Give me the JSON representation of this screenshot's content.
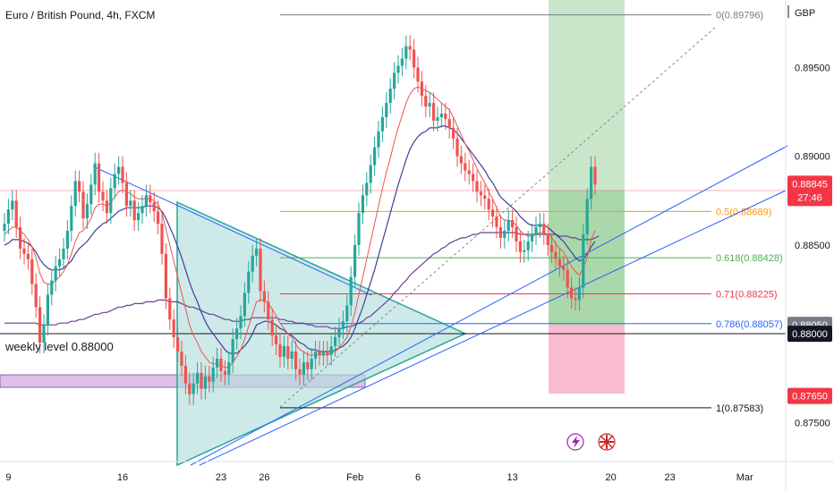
{
  "title": "Euro / British Pound, 4h, FXCM",
  "currency": "GBP",
  "colors": {
    "up": "#26a69a",
    "down": "#ef5350",
    "ema_fast": "#ef5350",
    "ema_slow": "#3f3f9a",
    "ema_long": "#6b3f8f",
    "wedge_fill": "#b2dfdb",
    "wedge_line": "#26a69a",
    "trendline": "#2962ff",
    "target_zone": "#a5d6a7",
    "stop_zone": "#f8bbd0",
    "purple_zone": "#e1bee7",
    "badge_red": "#f23645",
    "badge_black": "#131722",
    "badge_gray": "#787b86"
  },
  "chart_data": {
    "type": "candlestick",
    "title": "Euro / British Pound, 4h, FXCM",
    "ylim": [
      0.8728,
      0.8988
    ],
    "y_ticks": [
      {
        "value": 0.895,
        "label": "0.89500"
      },
      {
        "value": 0.89,
        "label": "0.89000"
      },
      {
        "value": 0.885,
        "label": "0.88500"
      },
      {
        "value": 0.875,
        "label": "0.87500"
      }
    ],
    "x_ticks": [
      {
        "bar": 1,
        "label": "9"
      },
      {
        "bar": 30,
        "label": "16"
      },
      {
        "bar": 55,
        "label": "23"
      },
      {
        "bar": 66,
        "label": "26"
      },
      {
        "bar": 89,
        "label": "Feb"
      },
      {
        "bar": 105,
        "label": "6"
      },
      {
        "bar": 129,
        "label": "13"
      },
      {
        "bar": 154,
        "label": "20"
      },
      {
        "bar": 169,
        "label": "23"
      },
      {
        "bar": 188,
        "label": "Mar"
      }
    ],
    "closes": [
      0.8862,
      0.887,
      0.8875,
      0.886,
      0.8848,
      0.8845,
      0.8842,
      0.8828,
      0.8815,
      0.8795,
      0.8805,
      0.8822,
      0.883,
      0.8838,
      0.8842,
      0.8848,
      0.8858,
      0.8872,
      0.8886,
      0.888,
      0.8865,
      0.8873,
      0.8884,
      0.8896,
      0.888,
      0.8875,
      0.8868,
      0.8882,
      0.889,
      0.8894,
      0.8885,
      0.8872,
      0.8875,
      0.8864,
      0.8868,
      0.8872,
      0.8878,
      0.8874,
      0.8869,
      0.8862,
      0.8845,
      0.882,
      0.8808,
      0.8798,
      0.879,
      0.8782,
      0.8772,
      0.8766,
      0.8772,
      0.8778,
      0.8769,
      0.8776,
      0.8773,
      0.8781,
      0.8786,
      0.8779,
      0.8777,
      0.8784,
      0.8797,
      0.8803,
      0.881,
      0.8823,
      0.8835,
      0.8844,
      0.8848,
      0.8824,
      0.8818,
      0.8808,
      0.8799,
      0.8794,
      0.8787,
      0.8793,
      0.8786,
      0.879,
      0.878,
      0.8777,
      0.8784,
      0.878,
      0.8786,
      0.879,
      0.8788,
      0.879,
      0.8788,
      0.8793,
      0.8798,
      0.8803,
      0.8807,
      0.8816,
      0.8832,
      0.885,
      0.8868,
      0.8878,
      0.8885,
      0.8895,
      0.8905,
      0.8914,
      0.8922,
      0.893,
      0.8938,
      0.8947,
      0.8951,
      0.8955,
      0.8962,
      0.896,
      0.895,
      0.8942,
      0.8934,
      0.8928,
      0.893,
      0.892,
      0.8922,
      0.8924,
      0.8921,
      0.8916,
      0.891,
      0.89,
      0.8896,
      0.8892,
      0.889,
      0.8886,
      0.888,
      0.8878,
      0.8876,
      0.887,
      0.8866,
      0.886,
      0.8854,
      0.8858,
      0.8864,
      0.886,
      0.8852,
      0.8846,
      0.8847,
      0.8852,
      0.8856,
      0.886,
      0.8862,
      0.8856,
      0.885,
      0.8846,
      0.8842,
      0.8838,
      0.8836,
      0.8826,
      0.882,
      0.8819,
      0.8826,
      0.8856,
      0.8876,
      0.8894,
      0.8884
    ],
    "ema_fast": [
      0.8856,
      0.8858,
      0.886,
      0.886,
      0.8858,
      0.8856,
      0.8853,
      0.8849,
      0.8843,
      0.8834,
      0.8829,
      0.8828,
      0.8828,
      0.883,
      0.8832,
      0.8835,
      0.8839,
      0.8845,
      0.8852,
      0.8857,
      0.8858,
      0.8861,
      0.8865,
      0.8871,
      0.8873,
      0.8873,
      0.8872,
      0.8874,
      0.8877,
      0.888,
      0.8881,
      0.888,
      0.8879,
      0.8877,
      0.8876,
      0.8876,
      0.8876,
      0.8876,
      0.8875,
      0.8873,
      0.8868,
      0.8859,
      0.885,
      0.8841,
      0.8832,
      0.8823,
      0.8814,
      0.8805,
      0.8799,
      0.8795,
      0.879,
      0.8787,
      0.8784,
      0.8783,
      0.8783,
      0.8782,
      0.8781,
      0.8781,
      0.8784,
      0.8787,
      0.8791,
      0.8797,
      0.8804,
      0.8811,
      0.8818,
      0.8819,
      0.8819,
      0.8817,
      0.8814,
      0.881,
      0.8806,
      0.8803,
      0.88,
      0.8798,
      0.8794,
      0.8791,
      0.879,
      0.8788,
      0.8788,
      0.8788,
      0.8788,
      0.8788,
      0.8788,
      0.8789,
      0.879,
      0.8792,
      0.8795,
      0.8798,
      0.8804,
      0.8812,
      0.8822,
      0.8832,
      0.8842,
      0.8852,
      0.8862,
      0.8872,
      0.8882,
      0.8891,
      0.8899,
      0.8908,
      0.8916,
      0.8923,
      0.893,
      0.8935,
      0.8938,
      0.8939,
      0.8938,
      0.8937,
      0.8936,
      0.8934,
      0.8932,
      0.893,
      0.8928,
      0.8926,
      0.8922,
      0.8917,
      0.8912,
      0.8907,
      0.8903,
      0.8898,
      0.8893,
      0.8889,
      0.8885,
      0.888,
      0.8876,
      0.8871,
      0.8866,
      0.8864,
      0.8864,
      0.8863,
      0.8861,
      0.8858,
      0.8856,
      0.8855,
      0.8855,
      0.8856,
      0.8857,
      0.8857,
      0.8856,
      0.8854,
      0.8851,
      0.8848,
      0.8846,
      0.8842,
      0.8838,
      0.8835,
      0.8833,
      0.8837,
      0.8843,
      0.8853,
      0.8858
    ],
    "ema_slow": [
      0.885,
      0.8851,
      0.8853,
      0.8853,
      0.8853,
      0.8852,
      0.8851,
      0.8849,
      0.8846,
      0.8842,
      0.8839,
      0.8837,
      0.8836,
      0.8836,
      0.8836,
      0.8837,
      0.8839,
      0.8841,
      0.8845,
      0.8848,
      0.885,
      0.8852,
      0.8855,
      0.8858,
      0.886,
      0.8862,
      0.8863,
      0.8865,
      0.8867,
      0.8869,
      0.887,
      0.8871,
      0.8871,
      0.8871,
      0.8871,
      0.8871,
      0.8872,
      0.8872,
      0.8872,
      0.8871,
      0.8869,
      0.8865,
      0.886,
      0.8855,
      0.8849,
      0.8843,
      0.8836,
      0.8829,
      0.8823,
      0.8818,
      0.8812,
      0.8807,
      0.8803,
      0.88,
      0.8797,
      0.8794,
      0.8791,
      0.8789,
      0.8789,
      0.8789,
      0.8791,
      0.8793,
      0.8796,
      0.88,
      0.8805,
      0.8806,
      0.8807,
      0.8807,
      0.8806,
      0.8805,
      0.8803,
      0.8802,
      0.88,
      0.8799,
      0.8797,
      0.8795,
      0.8794,
      0.8792,
      0.8791,
      0.8791,
      0.879,
      0.879,
      0.879,
      0.879,
      0.8791,
      0.8792,
      0.8793,
      0.8795,
      0.8798,
      0.8803,
      0.8809,
      0.8815,
      0.8822,
      0.8829,
      0.8836,
      0.8844,
      0.8852,
      0.886,
      0.8868,
      0.8876,
      0.8884,
      0.8891,
      0.8898,
      0.8904,
      0.8908,
      0.8911,
      0.8913,
      0.8914,
      0.8916,
      0.8916,
      0.8916,
      0.8917,
      0.8917,
      0.8916,
      0.8915,
      0.8913,
      0.891,
      0.8907,
      0.8904,
      0.8901,
      0.8898,
      0.8895,
      0.8892,
      0.8888,
      0.8885,
      0.8881,
      0.8877,
      0.8875,
      0.8873,
      0.8871,
      0.8869,
      0.8866,
      0.8864,
      0.8862,
      0.8861,
      0.8861,
      0.8861,
      0.8861,
      0.886,
      0.8858,
      0.8856,
      0.8854,
      0.8852,
      0.8849,
      0.8846,
      0.8843,
      0.8841,
      0.8842,
      0.8845,
      0.8849,
      0.8852
    ],
    "ema_long": [
      0.8806,
      0.8806,
      0.8806,
      0.8806,
      0.8806,
      0.8806,
      0.8806,
      0.8806,
      0.8806,
      0.8805,
      0.8805,
      0.8805,
      0.8805,
      0.8805,
      0.8806,
      0.8806,
      0.8806,
      0.8807,
      0.8807,
      0.8808,
      0.8808,
      0.8809,
      0.881,
      0.8811,
      0.8811,
      0.8812,
      0.8812,
      0.8813,
      0.8814,
      0.8815,
      0.8815,
      0.8816,
      0.8816,
      0.8817,
      0.8817,
      0.8817,
      0.8818,
      0.8818,
      0.8818,
      0.8819,
      0.8819,
      0.8819,
      0.8818,
      0.8818,
      0.8818,
      0.8817,
      0.8816,
      0.8815,
      0.8815,
      0.8814,
      0.8813,
      0.8812,
      0.8811,
      0.8811,
      0.881,
      0.8809,
      0.8808,
      0.8808,
      0.8807,
      0.8807,
      0.8807,
      0.8808,
      0.8808,
      0.8809,
      0.8809,
      0.8809,
      0.8809,
      0.8809,
      0.8809,
      0.8809,
      0.8808,
      0.8808,
      0.8807,
      0.8807,
      0.8806,
      0.8806,
      0.8806,
      0.8805,
      0.8805,
      0.8804,
      0.8804,
      0.8804,
      0.8804,
      0.8803,
      0.8803,
      0.8803,
      0.8803,
      0.8804,
      0.8804,
      0.8805,
      0.8806,
      0.8807,
      0.8809,
      0.881,
      0.8812,
      0.8814,
      0.8816,
      0.8818,
      0.882,
      0.8823,
      0.8825,
      0.8828,
      0.883,
      0.8833,
      0.8835,
      0.8837,
      0.8839,
      0.8841,
      0.8843,
      0.8845,
      0.8846,
      0.8848,
      0.8849,
      0.8851,
      0.8852,
      0.8853,
      0.8854,
      0.8854,
      0.8855,
      0.8856,
      0.8856,
      0.8857,
      0.8857,
      0.8857,
      0.8857,
      0.8857,
      0.8857,
      0.8857,
      0.8857,
      0.8857,
      0.8857,
      0.8856,
      0.8856,
      0.8856,
      0.8856,
      0.8856,
      0.8856,
      0.8856,
      0.8856,
      0.8856,
      0.8856,
      0.8855,
      0.8855,
      0.8855,
      0.8854,
      0.8854,
      0.8853,
      0.8853,
      0.8853,
      0.8853,
      0.8854,
      0.8855
    ]
  },
  "fib_levels": [
    {
      "label": "0(0.89796)",
      "value": 0.89796,
      "color": "#787b86"
    },
    {
      "label": "0.5(0.88689)",
      "value": 0.88689,
      "color": "#ff9800"
    },
    {
      "label": "0.618(0.88428)",
      "value": 0.88428,
      "color": "#4caf50"
    },
    {
      "label": "0.71(0.88225)",
      "value": 0.88225,
      "color": "#f23645"
    },
    {
      "label": "0.786(0.88057)",
      "value": 0.88057,
      "color": "#2962ff"
    },
    {
      "label": "1(0.87583)",
      "value": 0.87583,
      "color": "#131722"
    }
  ],
  "price_badges": [
    {
      "price": "0.88845",
      "countdown": "27:46",
      "style": "red"
    },
    {
      "price": "0.88050",
      "style": "gray"
    },
    {
      "price": "0.88000",
      "style": "black"
    },
    {
      "price": "0.87650",
      "style": "red"
    }
  ],
  "annotation": "weekly level 0.88000",
  "icons": [
    "lightning-icon",
    "uk-flag-icon"
  ]
}
